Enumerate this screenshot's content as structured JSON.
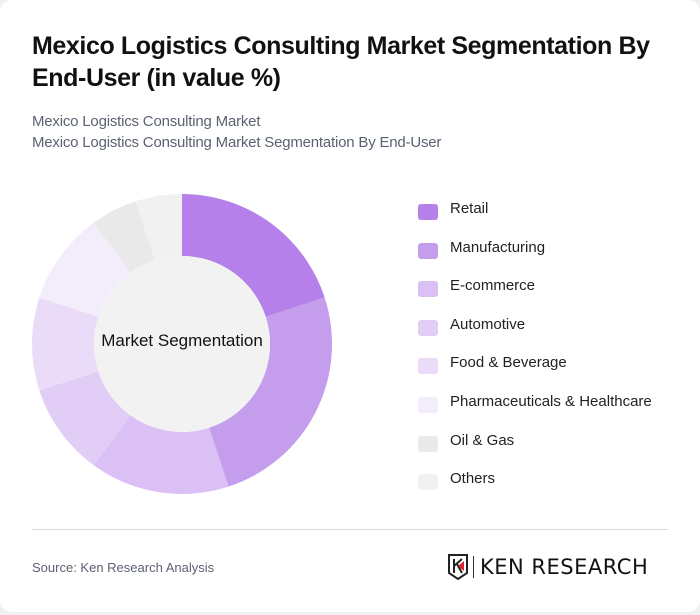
{
  "header": {
    "title": "Mexico Logistics Consulting Market Segmentation By End-User (in value %)",
    "subtitle_1": "Mexico Logistics Consulting Market",
    "subtitle_2": "Mexico Logistics Consulting Market Segmentation By End-User"
  },
  "center_label": "Market Segmentation",
  "footer": {
    "source": "Source: Ken Research Analysis",
    "logo_text": "KEN RESEARCH"
  },
  "chart_data": {
    "type": "pie",
    "variant": "donut",
    "title": "Mexico Logistics Consulting Market Segmentation By End-User (in value %)",
    "center_text": "Market Segmentation",
    "categories": [
      "Retail",
      "Manufacturing",
      "E-commerce",
      "Automotive",
      "Food & Beverage",
      "Pharmaceuticals & Healthcare",
      "Oil & Gas",
      "Others"
    ],
    "values": [
      20,
      25,
      15,
      10,
      10,
      10,
      5,
      5
    ],
    "colors": [
      "#b580e9",
      "#c59ded",
      "#dbc0f6",
      "#e2cdf7",
      "#eadcf9",
      "#f3ecfb",
      "#e9e9e9",
      "#f1f1f1"
    ],
    "legend_position": "right",
    "start_angle": "12 o'clock, clockwise"
  }
}
